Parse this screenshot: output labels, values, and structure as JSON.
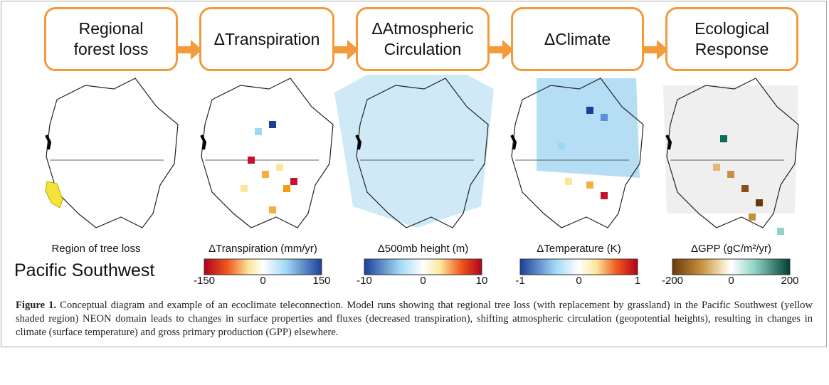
{
  "flow": {
    "boxes": [
      {
        "label": "Regional forest loss"
      },
      {
        "label": "ΔTranspiration"
      },
      {
        "label": "ΔAtmospheric Circulation"
      },
      {
        "label": "ΔClimate"
      },
      {
        "label": "Ecological Response"
      }
    ]
  },
  "panels": [
    {
      "title": "Region of tree loss",
      "region": "Pacific Southwest"
    },
    {
      "title": "ΔTranspiration (mm/yr)",
      "ticks": [
        "-150",
        "0",
        "150"
      ]
    },
    {
      "title": "Δ500mb height (m)",
      "ticks": [
        "-10",
        "0",
        "10"
      ]
    },
    {
      "title": "ΔTemperature (K)",
      "ticks": [
        "-1",
        "0",
        "1"
      ]
    },
    {
      "title": "ΔGPP (gC/m²/yr)",
      "ticks": [
        "-200",
        "0",
        "200"
      ]
    }
  ],
  "caption": {
    "label": "Figure 1.",
    "text": "Conceptual diagram and example of an ecoclimate teleconnection. Model runs showing that regional tree loss (with replacement by grassland) in the Pacific Southwest (yellow shaded region) NEON domain leads to changes in surface properties and fluxes (decreased transpiration), shifting atmospheric circulation (geopotential heights), resulting in changes in climate (surface temperature) and gross primary production (GPP) elsewhere."
  }
}
